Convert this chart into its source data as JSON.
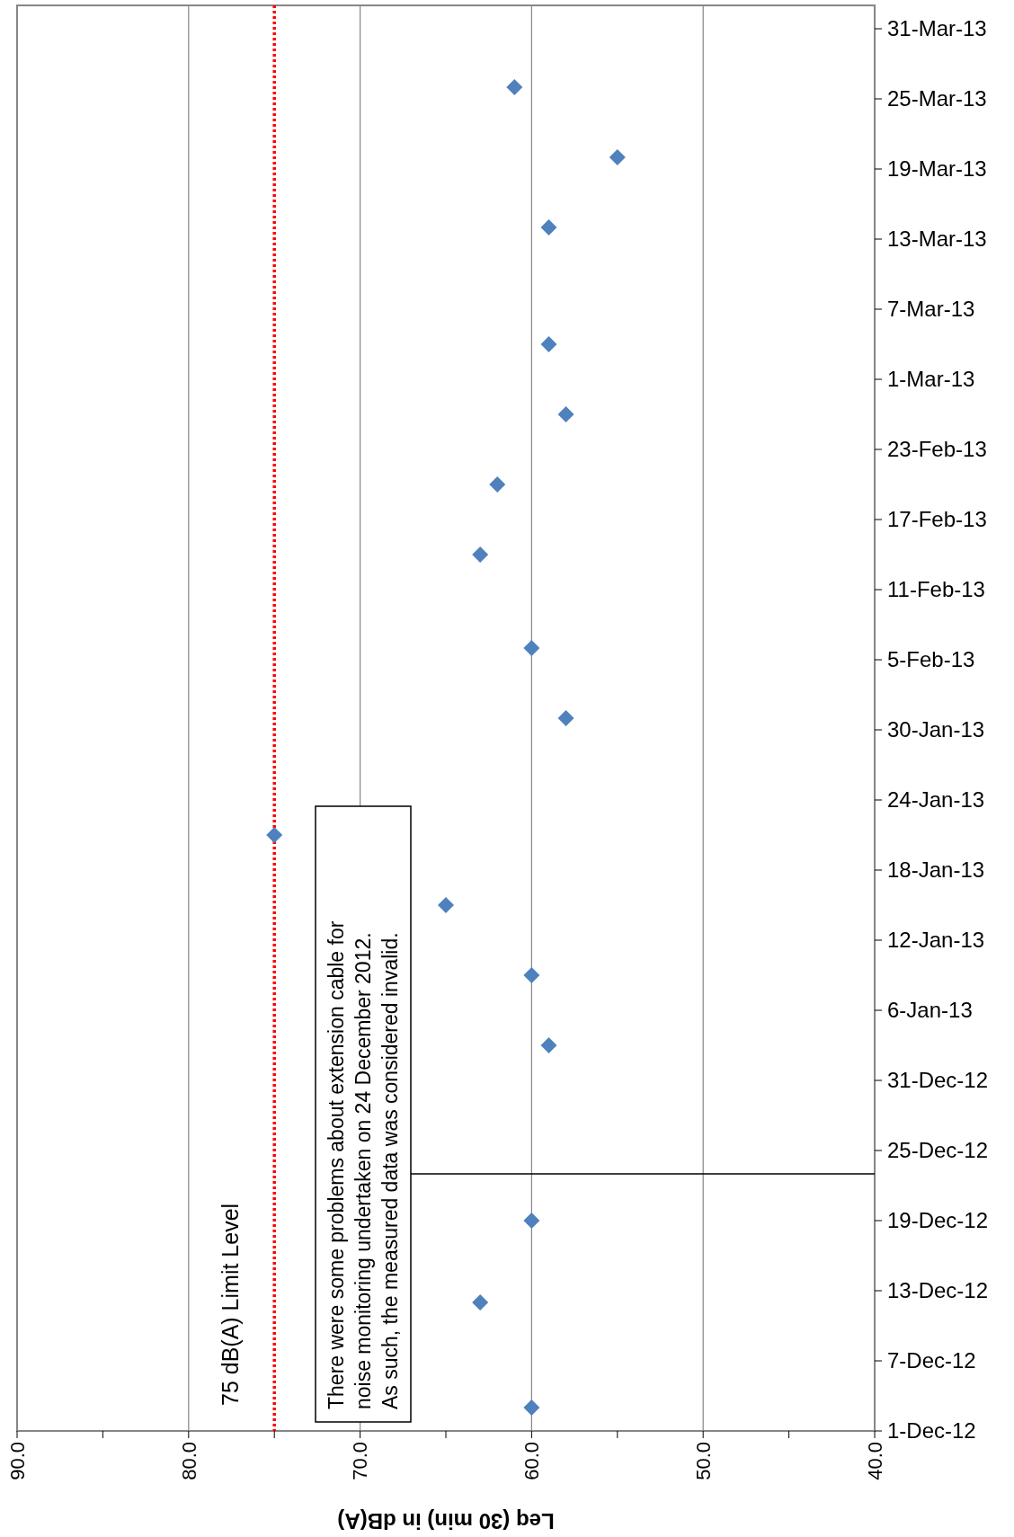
{
  "chart_data": {
    "type": "scatter",
    "orientation": "horizontal",
    "xlabel": "Leq (30 min) in dB(A)",
    "marker": "diamond",
    "grid": "x",
    "x": [
      "2012-12-03",
      "2012-12-12",
      "2012-12-19",
      "2013-01-03",
      "2013-01-09",
      "2013-01-15",
      "2013-01-21",
      "2013-01-31",
      "2013-02-06",
      "2013-02-14",
      "2013-02-20",
      "2013-02-26",
      "2013-03-04",
      "2013-03-14",
      "2013-03-20",
      "2013-03-26"
    ],
    "series": [
      {
        "color": "#4f81bd",
        "values": [
          60,
          63,
          60,
          59,
          60,
          65,
          75,
          58,
          60,
          63,
          62,
          58,
          59,
          59,
          55,
          61
        ]
      }
    ],
    "ylim": [
      "2012-12-01",
      "2013-04-02"
    ],
    "yticks": [
      {
        "value": "2012-12-01",
        "label": "1-Dec-12"
      },
      {
        "value": "2012-12-07",
        "label": "7-Dec-12"
      },
      {
        "value": "2012-12-13",
        "label": "13-Dec-12"
      },
      {
        "value": "2012-12-19",
        "label": "19-Dec-12"
      },
      {
        "value": "2012-12-25",
        "label": "25-Dec-12"
      },
      {
        "value": "2012-12-31",
        "label": "31-Dec-12"
      },
      {
        "value": "2013-01-06",
        "label": "6-Jan-13"
      },
      {
        "value": "2013-01-12",
        "label": "12-Jan-13"
      },
      {
        "value": "2013-01-18",
        "label": "18-Jan-13"
      },
      {
        "value": "2013-01-24",
        "label": "24-Jan-13"
      },
      {
        "value": "2013-01-30",
        "label": "30-Jan-13"
      },
      {
        "value": "2013-02-05",
        "label": "5-Feb-13"
      },
      {
        "value": "2013-02-11",
        "label": "11-Feb-13"
      },
      {
        "value": "2013-02-17",
        "label": "17-Feb-13"
      },
      {
        "value": "2013-02-23",
        "label": "23-Feb-13"
      },
      {
        "value": "2013-03-01",
        "label": "1-Mar-13"
      },
      {
        "value": "2013-03-07",
        "label": "7-Mar-13"
      },
      {
        "value": "2013-03-13",
        "label": "13-Mar-13"
      },
      {
        "value": "2013-03-19",
        "label": "19-Mar-13"
      },
      {
        "value": "2013-03-25",
        "label": "25-Mar-13"
      },
      {
        "value": "2013-03-31",
        "label": "31-Mar-13"
      }
    ],
    "xlim": [
      90,
      40
    ],
    "xticks": [
      {
        "value": 90,
        "label": "90.0"
      },
      {
        "value": 85,
        "label": null
      },
      {
        "value": 80,
        "label": "80.0"
      },
      {
        "value": 75,
        "label": null
      },
      {
        "value": 70,
        "label": "70.0"
      },
      {
        "value": 65,
        "label": null
      },
      {
        "value": 60,
        "label": "60.0"
      },
      {
        "value": 55,
        "label": null
      },
      {
        "value": 50,
        "label": "50.0"
      },
      {
        "value": 45,
        "label": null
      },
      {
        "value": 40,
        "label": "40.0"
      }
    ],
    "ref_lines": [
      {
        "axis": "x",
        "value": 75,
        "label": "75 dB(A) Limit Level",
        "color": "#ff0000",
        "line_style": "dotted"
      },
      {
        "axis": "y",
        "value": "2012-12-23",
        "color": "#000000",
        "line_style": "solid"
      }
    ],
    "annotations": [
      "There were some problems about extension cable for\nnoise monitoring undertaken on 24 December 2012.\nAs such, the measured data was considered invalid."
    ]
  }
}
